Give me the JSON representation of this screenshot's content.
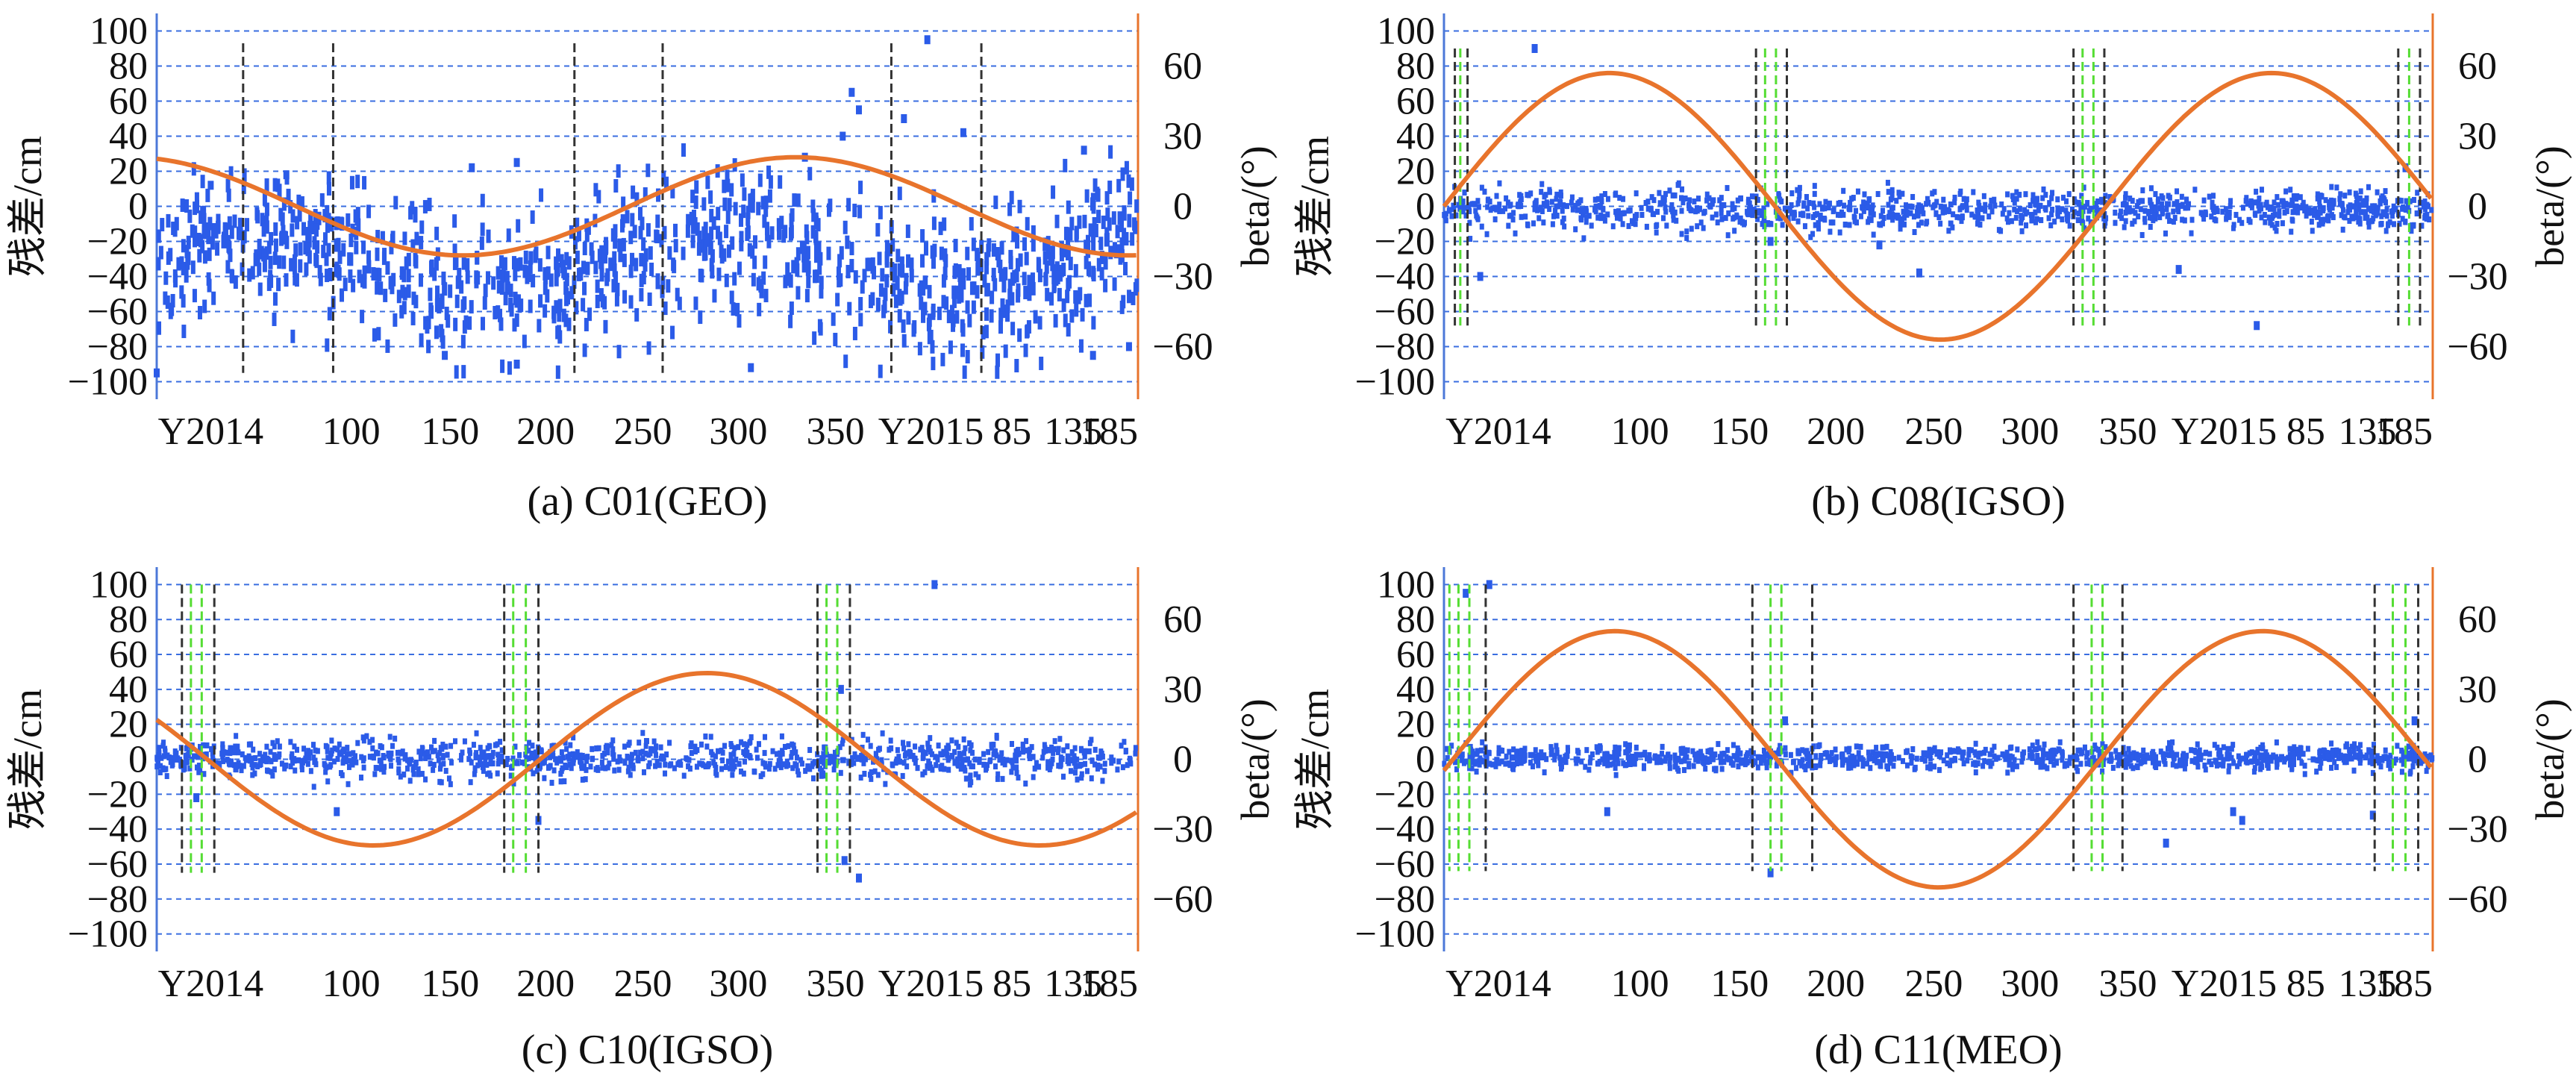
{
  "colors": {
    "points": "#2b5be8",
    "beta_curve": "#e8742c",
    "left_axis": "#4c78d8",
    "right_axis": "#e8742c",
    "grid": "#3a6ee0",
    "marker_black": "#333333",
    "marker_green": "#55dd33"
  },
  "chart_data": [
    {
      "id": "a",
      "type": "scatter",
      "caption": "(a) C01(GEO)",
      "ylabel_left": "残差/cm",
      "ylabel_right": "beta/(°)",
      "x_range": [
        0,
        545
      ],
      "ylim_left": [
        -110,
        110
      ],
      "ylim_right": [
        -82.5,
        82.5
      ],
      "left_ticks": [
        "100",
        "80",
        "60",
        "40",
        "20",
        "0",
        "−20",
        "−40",
        "−60",
        "−80",
        "−100"
      ],
      "right_ticks": [
        "60",
        "30",
        "0",
        "−30",
        "−60"
      ],
      "x_tick_labels": [
        "Y2014",
        "100",
        "150",
        "200",
        "250",
        "300",
        "350",
        "Y2015",
        "85",
        "135",
        "185"
      ],
      "gridlines": [
        -100,
        -80,
        -60,
        -40,
        -20,
        0,
        20,
        40,
        60,
        80,
        100
      ],
      "beta_curve": {
        "amplitude": 21,
        "period": 370,
        "phase_day": 75,
        "offset": 0
      },
      "markers": [
        {
          "day": 48,
          "color": "black"
        },
        {
          "day": 98,
          "color": "black"
        },
        {
          "day": 232,
          "color": "black"
        },
        {
          "day": 281,
          "color": "black"
        },
        {
          "day": 408,
          "color": "black"
        },
        {
          "day": 458,
          "color": "black"
        }
      ],
      "marker_range": [
        -95,
        93
      ],
      "residuals": {
        "center": -28,
        "spread": 26,
        "description": "scattered blue residual points, mostly between −90 and 20 cm, a few outliers up to 95 cm"
      },
      "outliers": [
        {
          "day": 30,
          "value": 12
        },
        {
          "day": 72,
          "value": 18
        },
        {
          "day": 175,
          "value": 22
        },
        {
          "day": 200,
          "value": 25
        },
        {
          "day": 360,
          "value": 28
        },
        {
          "day": 381,
          "value": 40
        },
        {
          "day": 386,
          "value": 65
        },
        {
          "day": 390,
          "value": 55
        },
        {
          "day": 415,
          "value": 50
        },
        {
          "day": 428,
          "value": 95
        },
        {
          "day": 448,
          "value": 42
        },
        {
          "day": 515,
          "value": 32
        },
        {
          "day": 0,
          "value": -95
        },
        {
          "day": 160,
          "value": -85
        },
        {
          "day": 200,
          "value": -90
        },
        {
          "day": 330,
          "value": -92
        },
        {
          "day": 520,
          "value": -85
        },
        {
          "day": 540,
          "value": -80
        }
      ]
    },
    {
      "id": "b",
      "type": "scatter",
      "caption": "(b) C08(IGSO)",
      "ylabel_left": "残差/cm",
      "ylabel_right": "beta/(°)",
      "x_range": [
        0,
        545
      ],
      "ylim_left": [
        -110,
        110
      ],
      "ylim_right": [
        -82.5,
        82.5
      ],
      "left_ticks": [
        "100",
        "80",
        "60",
        "40",
        "20",
        "0",
        "−20",
        "−40",
        "−60",
        "−80",
        "−100"
      ],
      "right_ticks": [
        "60",
        "30",
        "0",
        "−30",
        "−60"
      ],
      "x_tick_labels": [
        "Y2014",
        "100",
        "150",
        "200",
        "250",
        "300",
        "350",
        "Y2015",
        "85",
        "135",
        "185"
      ],
      "gridlines": [
        -100,
        -80,
        -60,
        -40,
        -20,
        0,
        20,
        40,
        60,
        80,
        100
      ],
      "beta_curve": {
        "amplitude": 57,
        "period": 365,
        "phase_day": 0,
        "offset": 0
      },
      "markers": [
        {
          "day": 6,
          "color": "black"
        },
        {
          "day": 9,
          "color": "green"
        },
        {
          "day": 13,
          "color": "black"
        },
        {
          "day": 172,
          "color": "black"
        },
        {
          "day": 177,
          "color": "green"
        },
        {
          "day": 183,
          "color": "green"
        },
        {
          "day": 189,
          "color": "black"
        },
        {
          "day": 347,
          "color": "black"
        },
        {
          "day": 352,
          "color": "green"
        },
        {
          "day": 358,
          "color": "green"
        },
        {
          "day": 364,
          "color": "black"
        },
        {
          "day": 526,
          "color": "black"
        },
        {
          "day": 532,
          "color": "green"
        },
        {
          "day": 538,
          "color": "black"
        }
      ],
      "marker_range": [
        -68,
        90
      ],
      "residuals": {
        "center": -2,
        "spread": 8,
        "description": "dense blue residual band around 0 cm, roughly −20 to 20 cm"
      },
      "outliers": [
        {
          "day": 20,
          "value": -40
        },
        {
          "day": 50,
          "value": 90
        },
        {
          "day": 180,
          "value": -20
        },
        {
          "day": 240,
          "value": -22
        },
        {
          "day": 262,
          "value": -38
        },
        {
          "day": 405,
          "value": -36
        },
        {
          "day": 448,
          "value": -68
        },
        {
          "day": 530,
          "value": 22
        }
      ]
    },
    {
      "id": "c",
      "type": "scatter",
      "caption": "(c) C10(IGSO)",
      "ylabel_left": "残差/cm",
      "ylabel_right": "beta/(°)",
      "x_range": [
        0,
        545
      ],
      "ylim_left": [
        -110,
        110
      ],
      "ylim_right": [
        -82.5,
        82.5
      ],
      "left_ticks": [
        "100",
        "80",
        "60",
        "40",
        "20",
        "0",
        "−20",
        "−40",
        "−60",
        "−80",
        "−100"
      ],
      "right_ticks": [
        "60",
        "30",
        "0",
        "−30",
        "−60"
      ],
      "x_tick_labels": [
        "Y2014",
        "100",
        "150",
        "200",
        "250",
        "300",
        "350",
        "Y2015",
        "85",
        "135",
        "185"
      ],
      "gridlines": [
        -100,
        -80,
        -60,
        -40,
        -20,
        0,
        20,
        40,
        60,
        80,
        100
      ],
      "beta_curve": {
        "amplitude": 37,
        "period": 370,
        "phase_day": 28,
        "offset": 0,
        "negative": true
      },
      "markers": [
        {
          "day": 14,
          "color": "black"
        },
        {
          "day": 19,
          "color": "green"
        },
        {
          "day": 25,
          "color": "green"
        },
        {
          "day": 32,
          "color": "black"
        },
        {
          "day": 193,
          "color": "black"
        },
        {
          "day": 198,
          "color": "green"
        },
        {
          "day": 205,
          "color": "green"
        },
        {
          "day": 212,
          "color": "black"
        },
        {
          "day": 367,
          "color": "black"
        },
        {
          "day": 372,
          "color": "green"
        },
        {
          "day": 378,
          "color": "green"
        },
        {
          "day": 385,
          "color": "black"
        }
      ],
      "marker_range": [
        -65,
        100
      ],
      "residuals": {
        "center": 0,
        "spread": 8,
        "description": "dense blue residual band around 0 cm, roughly −20 to 20 cm"
      },
      "outliers": [
        {
          "day": 22,
          "value": -22
        },
        {
          "day": 100,
          "value": -30
        },
        {
          "day": 212,
          "value": -35
        },
        {
          "day": 380,
          "value": 40
        },
        {
          "day": 382,
          "value": -58
        },
        {
          "day": 390,
          "value": -68
        },
        {
          "day": 432,
          "value": 100
        }
      ]
    },
    {
      "id": "d",
      "type": "scatter",
      "caption": "(d) C11(MEO)",
      "ylabel_left": "残差/cm",
      "ylabel_right": "beta/(°)",
      "x_range": [
        0,
        545
      ],
      "ylim_left": [
        -110,
        110
      ],
      "ylim_right": [
        -82.5,
        82.5
      ],
      "left_ticks": [
        "100",
        "80",
        "60",
        "40",
        "20",
        "0",
        "−20",
        "−40",
        "−60",
        "−80",
        "−100"
      ],
      "right_ticks": [
        "60",
        "30",
        "0",
        "−30",
        "−60"
      ],
      "x_tick_labels": [
        "Y2014",
        "100",
        "150",
        "200",
        "250",
        "300",
        "350",
        "Y2015",
        "85",
        "135",
        "185"
      ],
      "gridlines": [
        -100,
        -80,
        -60,
        -40,
        -20,
        0,
        20,
        40,
        60,
        80,
        100
      ],
      "beta_curve": {
        "amplitude": 55,
        "period": 357,
        "phase_day": 5,
        "offset": 0
      },
      "markers": [
        {
          "day": 3,
          "color": "green"
        },
        {
          "day": 8,
          "color": "green"
        },
        {
          "day": 14,
          "color": "green"
        },
        {
          "day": 23,
          "color": "black"
        },
        {
          "day": 170,
          "color": "black"
        },
        {
          "day": 180,
          "color": "green"
        },
        {
          "day": 186,
          "color": "green"
        },
        {
          "day": 203,
          "color": "black"
        },
        {
          "day": 347,
          "color": "black"
        },
        {
          "day": 357,
          "color": "green"
        },
        {
          "day": 363,
          "color": "green"
        },
        {
          "day": 374,
          "color": "black"
        },
        {
          "day": 513,
          "color": "black"
        },
        {
          "day": 523,
          "color": "green"
        },
        {
          "day": 530,
          "color": "green"
        },
        {
          "day": 537,
          "color": "black"
        }
      ],
      "marker_range": [
        -64,
        100
      ],
      "residuals": {
        "center": 1,
        "spread": 5,
        "description": "dense blue residual band around 0 cm, roughly −15 to 15 cm"
      },
      "outliers": [
        {
          "day": 12,
          "value": 95
        },
        {
          "day": 25,
          "value": 100
        },
        {
          "day": 90,
          "value": -30
        },
        {
          "day": 180,
          "value": -65
        },
        {
          "day": 188,
          "value": 22
        },
        {
          "day": 398,
          "value": -48
        },
        {
          "day": 435,
          "value": -30
        },
        {
          "day": 440,
          "value": -35
        },
        {
          "day": 512,
          "value": -32
        },
        {
          "day": 535,
          "value": 22
        }
      ]
    }
  ]
}
